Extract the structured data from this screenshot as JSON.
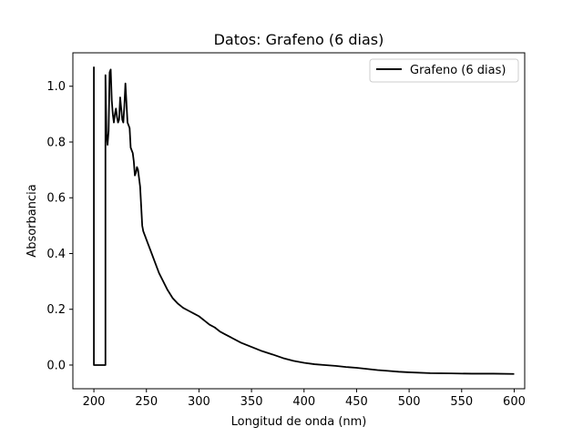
{
  "chart_data": {
    "type": "line",
    "title": "Datos: Grafeno (6 dias)",
    "xlabel": "Longitud de onda (nm)",
    "ylabel": "Absorbancia",
    "xlim": [
      180,
      610
    ],
    "ylim": [
      -0.085,
      1.12
    ],
    "xticks": [
      200,
      250,
      300,
      350,
      400,
      450,
      500,
      550,
      600
    ],
    "yticks": [
      0.0,
      0.2,
      0.4,
      0.6,
      0.8,
      1.0
    ],
    "ytick_labels": [
      "0.0",
      "0.2",
      "0.4",
      "0.6",
      "0.8",
      "1.0"
    ],
    "legend_position": "top-right",
    "grid": false,
    "series": [
      {
        "name": "Grafeno (6 dias)",
        "color": "#000000",
        "x": [
          200,
          200,
          200,
          211,
          211,
          212,
          213,
          214,
          215,
          216,
          217,
          218,
          219,
          220,
          221,
          222,
          223,
          224,
          225,
          226,
          227,
          228,
          229,
          230,
          231,
          232,
          233,
          234,
          235,
          236,
          237,
          238,
          239,
          240,
          241,
          242,
          243,
          244,
          245,
          246,
          247,
          248,
          249,
          250,
          252,
          255,
          258,
          262,
          266,
          270,
          275,
          280,
          285,
          290,
          295,
          300,
          305,
          310,
          315,
          320,
          325,
          330,
          340,
          350,
          360,
          370,
          380,
          390,
          400,
          410,
          420,
          430,
          440,
          450,
          460,
          470,
          480,
          490,
          500,
          520,
          540,
          560,
          580,
          600
        ],
        "y": [
          1.07,
          0.0,
          0.0,
          0.0,
          1.04,
          0.83,
          0.79,
          0.84,
          1.05,
          1.06,
          0.95,
          0.9,
          0.87,
          0.9,
          0.92,
          0.89,
          0.87,
          0.88,
          0.96,
          0.92,
          0.88,
          0.87,
          0.93,
          1.01,
          0.94,
          0.87,
          0.86,
          0.85,
          0.78,
          0.77,
          0.76,
          0.73,
          0.68,
          0.69,
          0.71,
          0.7,
          0.67,
          0.64,
          0.57,
          0.5,
          0.48,
          0.47,
          0.46,
          0.45,
          0.43,
          0.4,
          0.37,
          0.33,
          0.3,
          0.27,
          0.24,
          0.22,
          0.205,
          0.195,
          0.185,
          0.175,
          0.16,
          0.145,
          0.135,
          0.12,
          0.11,
          0.1,
          0.08,
          0.065,
          0.05,
          0.038,
          0.025,
          0.015,
          0.008,
          0.003,
          0.0,
          -0.003,
          -0.007,
          -0.01,
          -0.014,
          -0.018,
          -0.021,
          -0.024,
          -0.026,
          -0.029,
          -0.03,
          -0.031,
          -0.031,
          -0.032
        ]
      }
    ]
  }
}
